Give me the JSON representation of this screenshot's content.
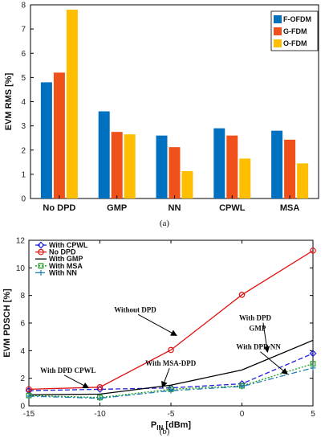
{
  "chart_data": [
    {
      "type": "bar",
      "label": "(a)",
      "categories": [
        "No DPD",
        "GMP",
        "NN",
        "CPWL",
        "MSA"
      ],
      "ylabel": "EVM RMS [%]",
      "ylim": [
        0,
        8
      ],
      "yticks": [
        0,
        1,
        2,
        3,
        4,
        5,
        6,
        7,
        8
      ],
      "legend_position": "top-right",
      "series": [
        {
          "name": "F-OFDM",
          "color": "#0070c0",
          "values": [
            4.8,
            3.6,
            2.6,
            2.9,
            2.8
          ]
        },
        {
          "name": "G-FDM",
          "color": "#f0501a",
          "values": [
            5.2,
            2.75,
            2.12,
            2.6,
            2.43
          ]
        },
        {
          "name": "O-FDM",
          "color": "#ffbf00",
          "values": [
            7.8,
            2.65,
            1.13,
            1.65,
            1.45
          ]
        }
      ]
    },
    {
      "type": "line",
      "label": "(b)",
      "xlabel_main": "P",
      "xlabel_sub": "IN",
      "xlabel_unit": " [dBm]",
      "ylabel": "EVM PDSCH [%]",
      "xlim": [
        -15,
        5
      ],
      "ylim": [
        0,
        12
      ],
      "xticks": [
        -15,
        -10,
        -5,
        0,
        5
      ],
      "yticks": [
        0,
        2,
        4,
        6,
        8,
        10,
        12
      ],
      "legend_position": "top-left",
      "x": [
        -15,
        -10,
        -5,
        0,
        5
      ],
      "series": [
        {
          "name": "With CPWL",
          "color": "#1f1fe0",
          "dash": "6,3",
          "marker": "diamond",
          "values": [
            1.1,
            1.2,
            1.3,
            1.6,
            3.8
          ]
        },
        {
          "name": "No DPD",
          "color": "#e01010",
          "dash": "",
          "marker": "circle",
          "values": [
            1.2,
            1.35,
            4.05,
            8.05,
            11.25
          ]
        },
        {
          "name": "With GMP",
          "color": "#000000",
          "dash": "",
          "marker": "none",
          "values": [
            0.8,
            0.85,
            1.5,
            2.6,
            4.75
          ]
        },
        {
          "name": "With MSA",
          "color": "#1a9a1a",
          "dash": "2,2",
          "marker": "square",
          "values": [
            0.75,
            0.6,
            1.2,
            1.45,
            3.05
          ]
        },
        {
          "name": "With NN",
          "color": "#1c7fb0",
          "dash": "7,3,2,3",
          "marker": "plus",
          "values": [
            0.7,
            0.55,
            1.1,
            1.4,
            2.75
          ]
        }
      ],
      "annotations": [
        {
          "text": "Without DPD",
          "x": -9,
          "y": 6.8,
          "arrow_to": [
            -4.6,
            5.1
          ]
        },
        {
          "text": "With DPD",
          "x": -0.2,
          "y": 6.2,
          "arrow_to": [
            1.8,
            3.9
          ]
        },
        {
          "text": "GMP",
          "x": 0.5,
          "y": 5.45,
          "arrow_to": null
        },
        {
          "text": "With DPD NN",
          "x": -0.4,
          "y": 4.1,
          "arrow_to": [
            3.2,
            2.3
          ]
        },
        {
          "text": "With MSA-DPD",
          "x": -6.8,
          "y": 2.9,
          "arrow_to": [
            -5.6,
            1.35
          ]
        },
        {
          "text": "With DPD CPWL",
          "x": -14.2,
          "y": 2.4,
          "arrow_to": [
            -10.8,
            1.3
          ]
        }
      ]
    }
  ]
}
